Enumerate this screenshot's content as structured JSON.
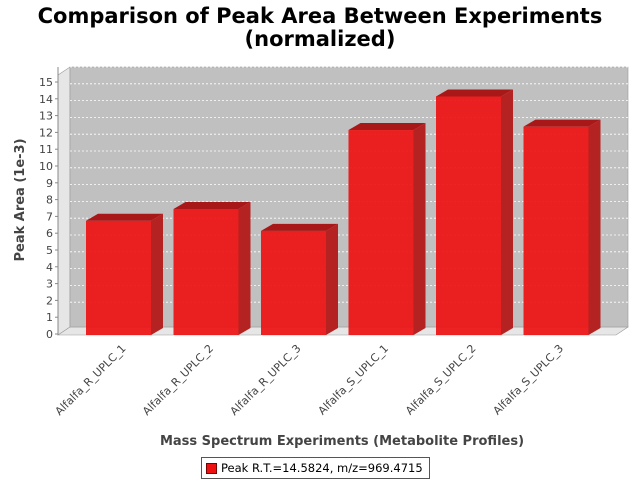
{
  "title_line1": "Comparison of Peak Area Between Experiments",
  "title_line2": "(normalized)",
  "chart_data": {
    "type": "bar",
    "title": "Comparison of Peak Area Between Experiments (normalized)",
    "xlabel": "Mass Spectrum Experiments (Metabolite Profiles)",
    "ylabel": "Peak Area (1e-3)",
    "categories": [
      "Alfalfa_R_UPLC_1",
      "Alfalfa_R_UPLC_2",
      "Alfalfa_R_UPLC_3",
      "Alfalfa_S_UPLC_1",
      "Alfalfa_S_UPLC_2",
      "Alfalfa_S_UPLC_3"
    ],
    "series": [
      {
        "name": "Peak R.T.=14.5824, m/z=969.4715",
        "values": [
          6.8,
          7.5,
          6.2,
          12.2,
          14.2,
          12.4
        ]
      }
    ],
    "ylim": [
      0,
      15
    ],
    "yticks": [
      "0",
      "1",
      "2",
      "3",
      "4",
      "5",
      "6",
      "7",
      "8",
      "9",
      "10",
      "11",
      "12",
      "13",
      "14",
      "15"
    ],
    "grid": true,
    "legend_position": "bottom",
    "bar_color": "#ee1111",
    "plot_background": "#c0c0c0"
  }
}
